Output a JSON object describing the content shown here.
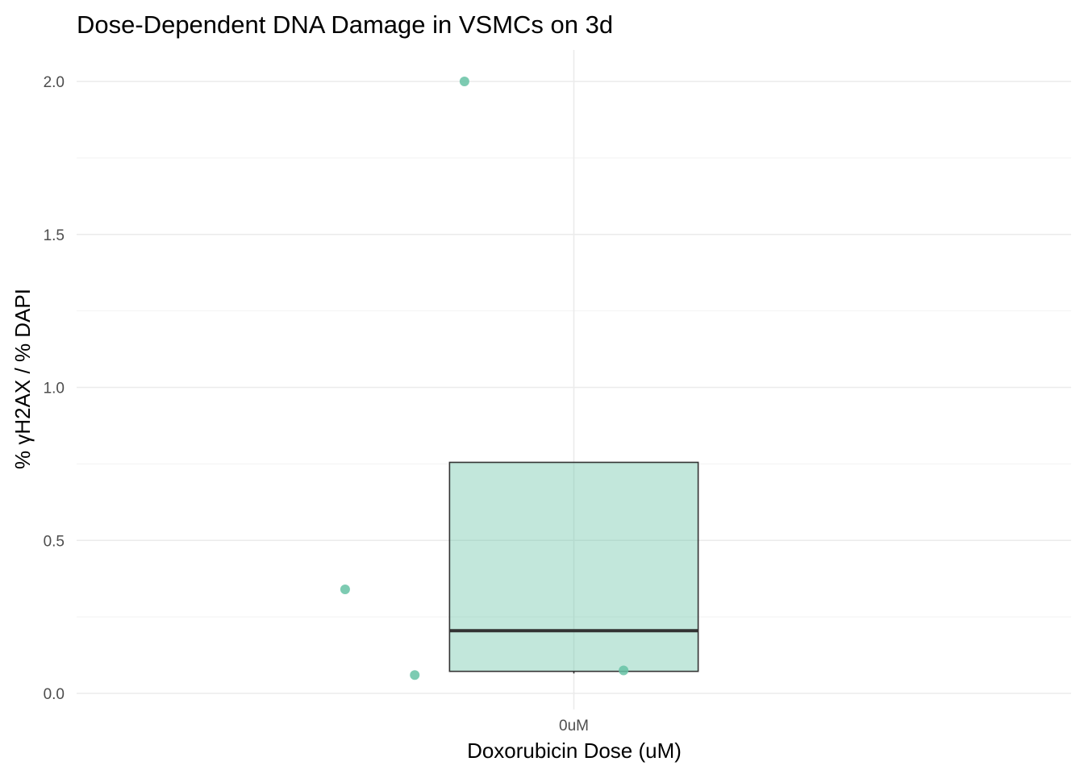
{
  "chart_data": {
    "type": "box",
    "title": "Dose-Dependent DNA Damage in VSMCs on 3d",
    "xlabel": "Doxorubicin Dose (uM)",
    "ylabel": "% γH2AX / % DAPI",
    "categories": [
      "0uM"
    ],
    "ylim": [
      -0.02,
      2.1
    ],
    "yticks": [
      0.0,
      0.5,
      1.0,
      1.5,
      2.0
    ],
    "ytick_labels": [
      "0.0",
      "0.5",
      "1.0",
      "1.5",
      "2.0"
    ],
    "grid": true,
    "legend": "none",
    "box": {
      "category": "0uM",
      "q1": 0.072,
      "median": 0.205,
      "q3": 0.755,
      "whisker_low": 0.065,
      "whisker_high": 0.755
    },
    "points": [
      {
        "category": "0uM",
        "jitter": -0.11,
        "y": 2.0
      },
      {
        "category": "0uM",
        "jitter": -0.23,
        "y": 0.34
      },
      {
        "category": "0uM",
        "jitter": -0.16,
        "y": 0.06
      },
      {
        "category": "0uM",
        "jitter": 0.05,
        "y": 0.075
      }
    ],
    "colors": {
      "fill": "#66c2a5",
      "point": "#66c2a5",
      "box_outline": "#333333"
    }
  }
}
